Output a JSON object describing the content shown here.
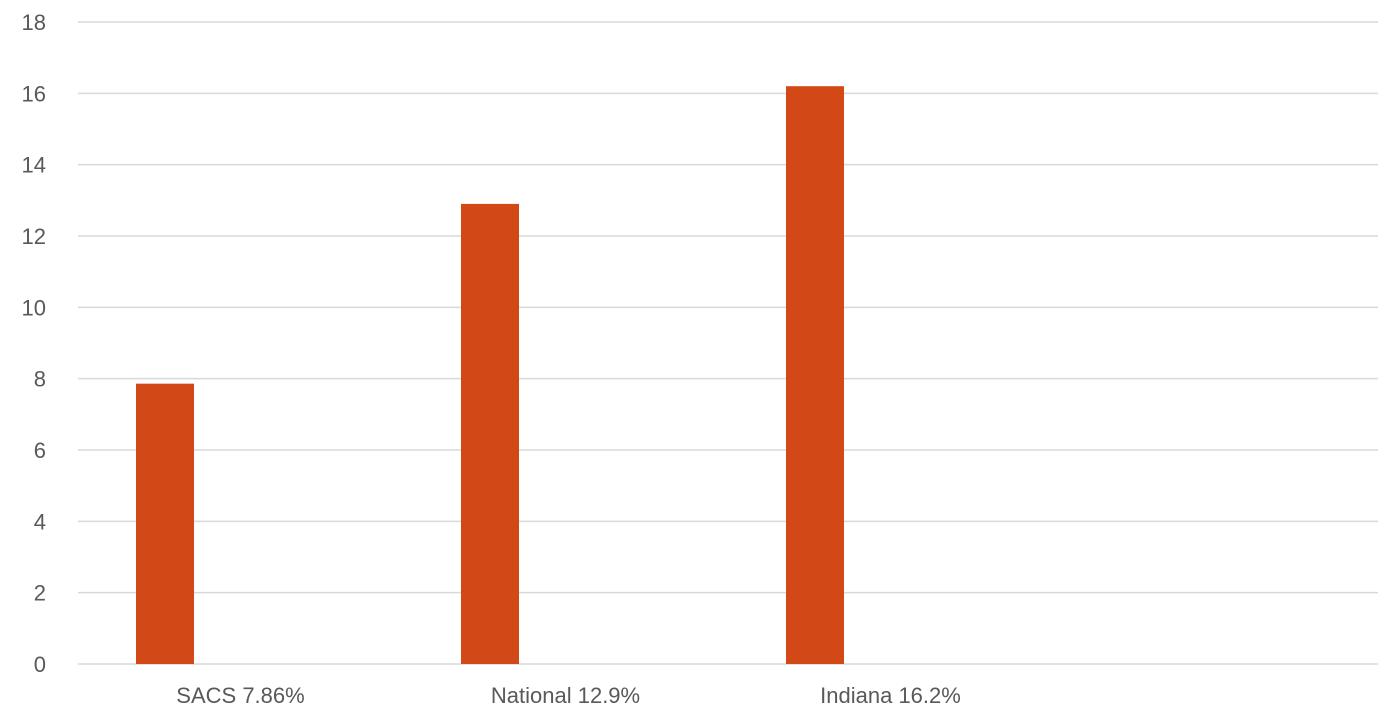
{
  "chart_data": {
    "type": "bar",
    "categories": [
      "SACS 7.86%",
      "National 12.9%",
      "Indiana 16.2%",
      ""
    ],
    "values": [
      7.86,
      12.9,
      16.2,
      null
    ],
    "title": "",
    "xlabel": "",
    "ylabel": "",
    "ylim": [
      0,
      18
    ],
    "yticks": [
      "0",
      "2",
      "4",
      "6",
      "8",
      "10",
      "12",
      "14",
      "16",
      "18"
    ],
    "grid": true,
    "legend": "none",
    "colors": {
      "bar": "#d34817"
    }
  }
}
